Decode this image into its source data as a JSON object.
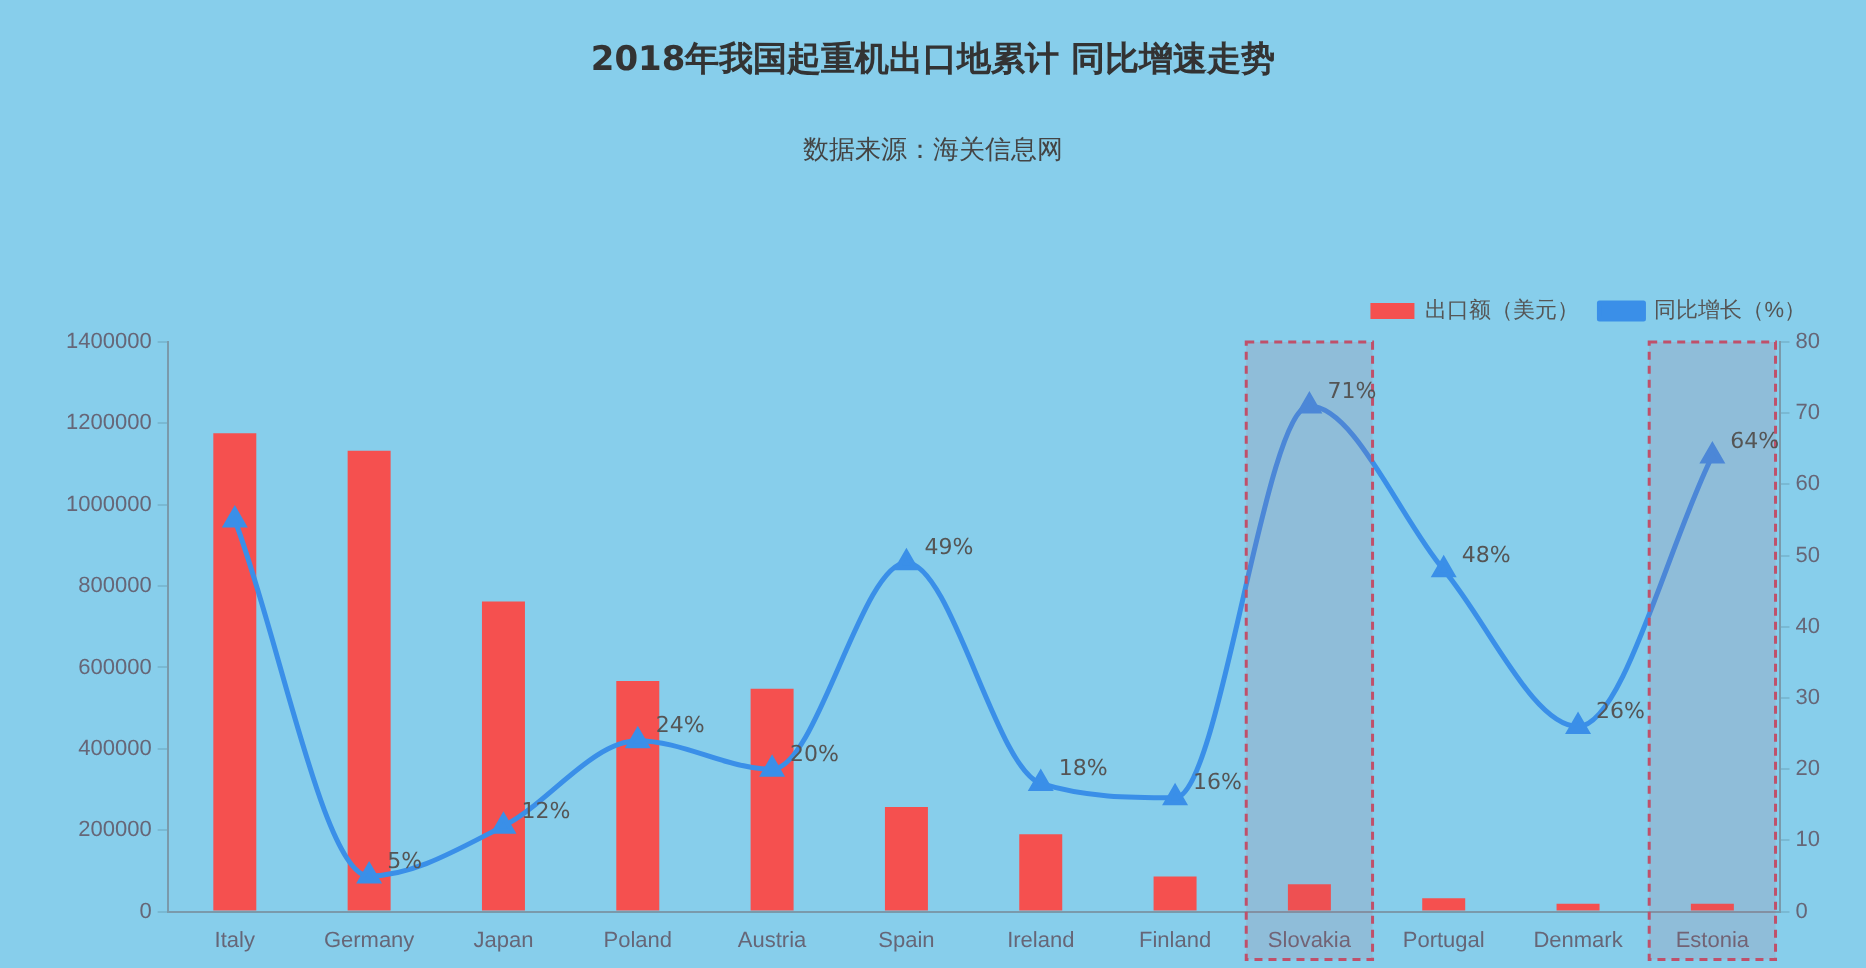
{
  "chart_data": {
    "type": "bar",
    "title": "2018年我国起重机出口地累计 同比增速走势",
    "subtitle": "数据来源：海关信息网",
    "categories": [
      "Italy",
      "Germany",
      "Japan",
      "Poland",
      "Austria",
      "Spain",
      "Ireland",
      "Finland",
      "Slovakia",
      "Portugal",
      "Denmark",
      "Estonia"
    ],
    "series": [
      {
        "name": "出口额（美元）",
        "color": "#f5504f",
        "values": [
          1176000,
          1133000,
          762000,
          567000,
          548000,
          257000,
          190000,
          86000,
          67000,
          33000,
          19000,
          19000
        ]
      },
      {
        "name": "同比增长（%）",
        "type": "line",
        "axis": "y2",
        "color": "#3a8fe8",
        "marker": "triangle",
        "values": [
          55,
          5,
          12,
          24,
          20,
          49,
          18,
          16,
          71,
          48,
          26,
          64
        ],
        "value_labels": [
          null,
          "5%",
          "12%",
          "24%",
          "20%",
          "49%",
          "18%",
          "16%",
          "71%",
          "48%",
          "26%",
          "64%"
        ]
      }
    ],
    "ylim": [
      0,
      1400000
    ],
    "yticks": [
      0,
      200000,
      400000,
      600000,
      800000,
      1000000,
      1200000,
      1400000
    ],
    "y2lim": [
      0,
      80
    ],
    "y2ticks": [
      0,
      10,
      20,
      30,
      40,
      50,
      60,
      70,
      80
    ],
    "bands": [
      {
        "axis": "x",
        "from": "Slovakia",
        "to": "Slovakia",
        "color": "#c0506a"
      },
      {
        "axis": "x",
        "from": "Estonia",
        "to": "Estonia",
        "color": "#c0506a"
      }
    ],
    "grid": false,
    "legend": "top right"
  }
}
